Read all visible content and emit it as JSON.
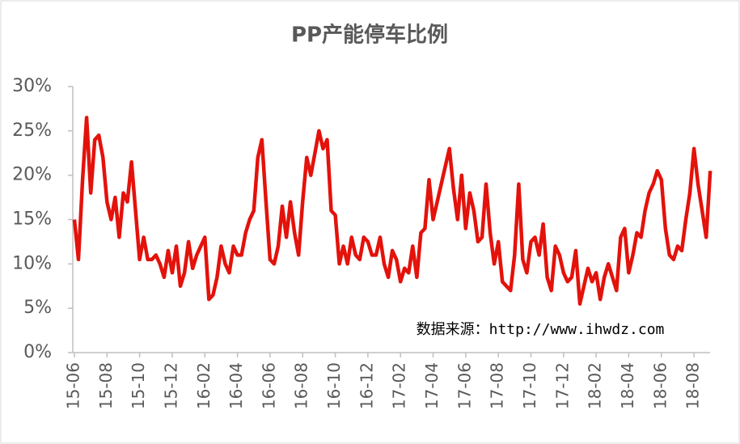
{
  "chart_data": {
    "type": "line",
    "title": "PP产能停车比例",
    "source": "数据来源：http://www.ihwdz.com",
    "categories": [
      "15-06",
      null,
      null,
      null,
      null,
      null,
      null,
      null,
      "15-08",
      null,
      null,
      null,
      null,
      null,
      null,
      null,
      "15-10",
      null,
      null,
      null,
      null,
      null,
      null,
      null,
      "15-12",
      null,
      null,
      null,
      null,
      null,
      null,
      null,
      "16-02",
      null,
      null,
      null,
      null,
      null,
      null,
      null,
      "16-04",
      null,
      null,
      null,
      null,
      null,
      null,
      null,
      "16-06",
      null,
      null,
      null,
      null,
      null,
      null,
      null,
      "16-08",
      null,
      null,
      null,
      null,
      null,
      null,
      null,
      "16-10",
      null,
      null,
      null,
      null,
      null,
      null,
      null,
      "16-12",
      null,
      null,
      null,
      null,
      null,
      null,
      null,
      "17-02",
      null,
      null,
      null,
      null,
      null,
      null,
      null,
      "17-04",
      null,
      null,
      null,
      null,
      null,
      null,
      null,
      "17-06",
      null,
      null,
      null,
      null,
      null,
      null,
      null,
      "17-08",
      null,
      null,
      null,
      null,
      null,
      null,
      null,
      "17-10",
      null,
      null,
      null,
      null,
      null,
      null,
      null,
      "17-12",
      null,
      null,
      null,
      null,
      null,
      null,
      null,
      "18-02",
      null,
      null,
      null,
      null,
      null,
      null,
      null,
      "18-04",
      null,
      null,
      null,
      null,
      null,
      null,
      null,
      "18-06",
      null,
      null,
      null,
      null,
      null,
      null,
      null,
      "18-08",
      null,
      null,
      null,
      null
    ],
    "series": [
      {
        "name": "PP产能停车比例",
        "color": "#e3120b",
        "values": [
          15,
          10.5,
          19.5,
          26.5,
          18,
          24,
          24.5,
          22,
          17,
          15,
          17.5,
          13,
          18,
          17,
          21.5,
          16,
          10.5,
          13,
          10.5,
          10.5,
          11,
          10,
          8.5,
          11.5,
          9,
          12,
          7.5,
          9,
          12.5,
          9.5,
          11,
          12,
          13,
          6,
          6.5,
          8.5,
          12,
          10,
          9,
          12,
          11,
          11,
          13.5,
          15,
          16,
          22,
          24,
          17,
          10.5,
          10,
          12,
          16.5,
          13,
          17,
          13.5,
          11,
          17,
          22,
          20,
          22.5,
          25,
          23,
          24,
          16,
          15.5,
          10,
          12,
          10,
          13,
          11,
          10.5,
          13,
          12.5,
          11,
          11,
          13,
          10,
          8.5,
          11.5,
          10.5,
          8,
          9.5,
          9,
          12,
          8.5,
          13.5,
          14,
          19.5,
          15,
          17,
          19,
          21,
          23,
          18.5,
          15,
          20,
          14,
          18,
          16,
          12.5,
          13,
          19,
          13.5,
          10,
          12.5,
          8,
          7.5,
          7,
          11,
          19,
          10.5,
          9,
          12.5,
          13,
          11,
          14.5,
          8.5,
          7,
          12,
          11,
          9,
          8,
          8.5,
          11.5,
          5.5,
          7.5,
          9.5,
          8,
          9,
          6,
          8.5,
          10,
          8.5,
          7,
          13,
          14,
          9,
          11,
          13.5,
          13,
          16,
          18,
          19,
          20.5,
          19.5,
          14,
          11,
          10.5,
          12,
          11.5,
          15,
          18,
          23,
          19,
          16,
          13,
          20.5
        ]
      }
    ],
    "ylim": [
      0,
      30
    ],
    "yticks": [
      {
        "value": 0,
        "label": "0%"
      },
      {
        "value": 5,
        "label": "5%"
      },
      {
        "value": 10,
        "label": "10%"
      },
      {
        "value": 15,
        "label": "15%"
      },
      {
        "value": 20,
        "label": "20%"
      },
      {
        "value": 25,
        "label": "25%"
      },
      {
        "value": 30,
        "label": "30%"
      }
    ]
  }
}
